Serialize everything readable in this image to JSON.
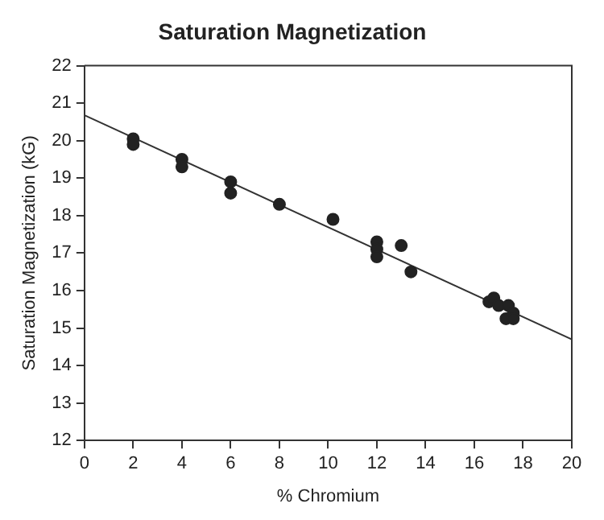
{
  "chart_data": {
    "type": "scatter",
    "title": "Saturation Magnetization",
    "xlabel": "% Chromium",
    "ylabel": "Saturation Magnetization (kG)",
    "xlim": [
      0,
      20
    ],
    "xticks": [
      0,
      2,
      4,
      6,
      8,
      10,
      12,
      14,
      16,
      18,
      20
    ],
    "ylim": [
      12,
      22
    ],
    "yticks": [
      12,
      13,
      14,
      15,
      16,
      17,
      18,
      19,
      20,
      21,
      22
    ],
    "grid": false,
    "legend": false,
    "marker": "circle",
    "series": [
      {
        "color": "#222222",
        "x": [
          2,
          2,
          4,
          4,
          6,
          6,
          8,
          10.2,
          12,
          12,
          12,
          13,
          13.4,
          16.6,
          16.8,
          17,
          17.4,
          17.3,
          17.6,
          17.6
        ],
        "values": [
          20.05,
          19.9,
          19.5,
          19.3,
          18.9,
          18.6,
          18.3,
          17.9,
          17.3,
          17.1,
          16.9,
          17.2,
          16.5,
          15.7,
          15.8,
          15.6,
          15.6,
          15.25,
          15.4,
          15.25
        ]
      },
      {
        "type": "line",
        "color": "#333333",
        "x": [
          0,
          20
        ],
        "values": [
          20.68,
          14.7
        ],
        "marker": "none"
      }
    ]
  }
}
